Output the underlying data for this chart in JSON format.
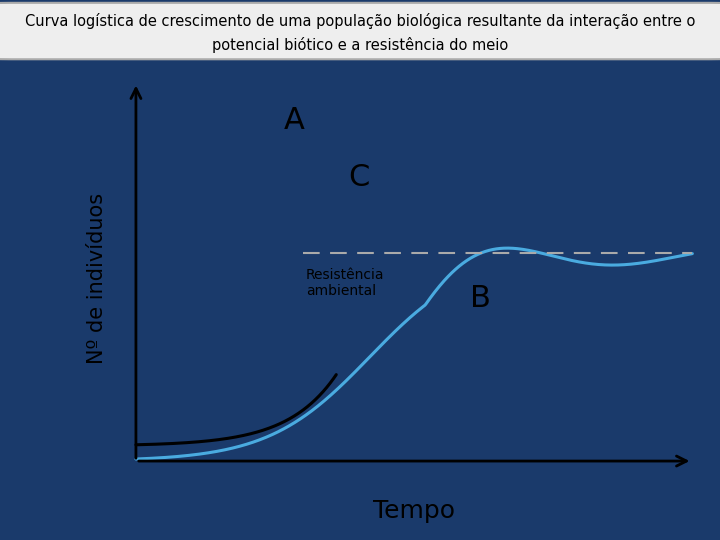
{
  "title_line1": "Curva logística de crescimento de uma população biológica resultante da interação entre o",
  "title_line2": "potencial biótico e a resistência do meio",
  "xlabel": "Tempo",
  "ylabel": "Nº de indivíduos",
  "background_color": "#1a3a6b",
  "plot_bg_color": "#ffffff",
  "title_box_bg": "#eeeeee",
  "title_box_edge": "#aaaaaa",
  "exponential_color": "#000000",
  "logistic_color": "#4aabe0",
  "dashed_color": "#aaaaaa",
  "label_A": "A",
  "label_B": "B",
  "label_C": "C",
  "label_resistencia": "Resistência\nambiental",
  "font_size_title": 10.5,
  "font_size_ylabel": 15,
  "font_size_xlabel": 18,
  "font_size_ABC": 22,
  "font_size_resistencia": 10
}
